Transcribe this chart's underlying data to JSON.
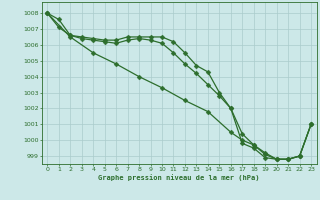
{
  "title": "Graphe pression niveau de la mer (hPa)",
  "bg_color": "#cce8e8",
  "grid_color": "#aacccc",
  "line_color": "#2d6e2d",
  "xlim": [
    -0.5,
    23.5
  ],
  "ylim": [
    998.5,
    1008.7
  ],
  "yticks": [
    999,
    1000,
    1001,
    1002,
    1003,
    1004,
    1005,
    1006,
    1007,
    1008
  ],
  "xticks": [
    0,
    1,
    2,
    3,
    4,
    5,
    6,
    7,
    8,
    9,
    10,
    11,
    12,
    13,
    14,
    15,
    16,
    17,
    18,
    19,
    20,
    21,
    22,
    23
  ],
  "series": [
    {
      "x": [
        0,
        1,
        2,
        3,
        4,
        5,
        6,
        7,
        8,
        9,
        10,
        11,
        12,
        13,
        14,
        15,
        16,
        17,
        18,
        19,
        20,
        21,
        22,
        23
      ],
      "y": [
        1008.0,
        1007.6,
        1006.6,
        1006.5,
        1006.4,
        1006.3,
        1006.3,
        1006.5,
        1006.5,
        1006.5,
        1006.5,
        1006.2,
        1005.5,
        1004.7,
        1004.3,
        1003.0,
        1002.0,
        1000.4,
        999.7,
        999.1,
        998.8,
        998.8,
        999.0,
        1001.0
      ],
      "marker": "D",
      "markersize": 2.5,
      "lw": 0.9
    },
    {
      "x": [
        0,
        1,
        2,
        3,
        4,
        5,
        6,
        7,
        8,
        9,
        10,
        11,
        12,
        13,
        14,
        15,
        16,
        17,
        18,
        19,
        20,
        21,
        22,
        23
      ],
      "y": [
        1008.0,
        1007.1,
        1006.6,
        1006.4,
        1006.3,
        1006.2,
        1006.1,
        1006.3,
        1006.4,
        1006.3,
        1006.1,
        1005.5,
        1004.8,
        1004.2,
        1003.5,
        1002.8,
        1002.0,
        999.8,
        999.5,
        998.9,
        998.8,
        998.8,
        999.0,
        1001.0
      ],
      "marker": "D",
      "markersize": 2.5,
      "lw": 0.9
    },
    {
      "x": [
        0,
        2,
        4,
        6,
        8,
        10,
        12,
        14,
        16,
        17,
        18,
        19,
        20,
        21,
        22,
        23
      ],
      "y": [
        1008.0,
        1006.5,
        1005.5,
        1004.8,
        1004.0,
        1003.3,
        1002.5,
        1001.8,
        1000.5,
        1000.0,
        999.7,
        999.2,
        998.8,
        998.8,
        999.0,
        1001.0
      ],
      "marker": "D",
      "markersize": 2.5,
      "lw": 0.9
    }
  ]
}
